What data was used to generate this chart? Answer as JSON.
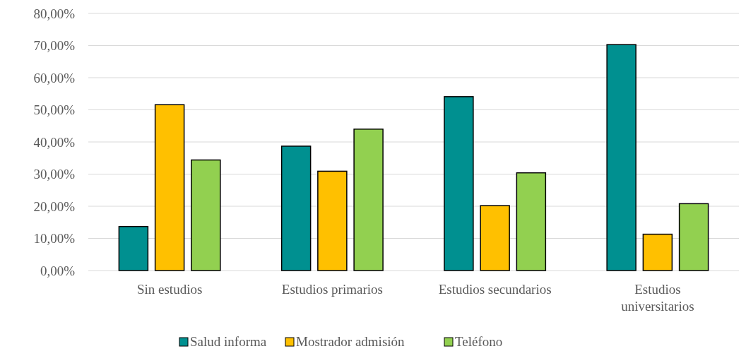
{
  "chart_data": {
    "type": "bar",
    "categories": [
      "Sin estudios",
      "Estudios primarios",
      "Estudios secundarios",
      "Estudios\nuniversitarios"
    ],
    "series": [
      {
        "name": "Salud informa",
        "color": "#009090",
        "values": [
          13.7,
          38.7,
          54.1,
          70.3
        ]
      },
      {
        "name": "Mostrador admisión",
        "color": "#ffc000",
        "values": [
          51.6,
          30.9,
          20.2,
          11.3
        ]
      },
      {
        "name": "Teléfono",
        "color": "#92d050",
        "values": [
          34.4,
          44.0,
          30.4,
          20.8
        ]
      }
    ],
    "ylim": [
      0,
      80
    ],
    "yticks": [
      {
        "value": 0,
        "label": "0,00%"
      },
      {
        "value": 10,
        "label": "10,00%"
      },
      {
        "value": 20,
        "label": "20,00%"
      },
      {
        "value": 30,
        "label": "30,00%"
      },
      {
        "value": 40,
        "label": "40,00%"
      },
      {
        "value": 50,
        "label": "50,00%"
      },
      {
        "value": 60,
        "label": "60,00%"
      },
      {
        "value": 70,
        "label": "70,00%"
      },
      {
        "value": 80,
        "label": "80,00%"
      }
    ],
    "grid": "y",
    "legend": "bottom"
  }
}
